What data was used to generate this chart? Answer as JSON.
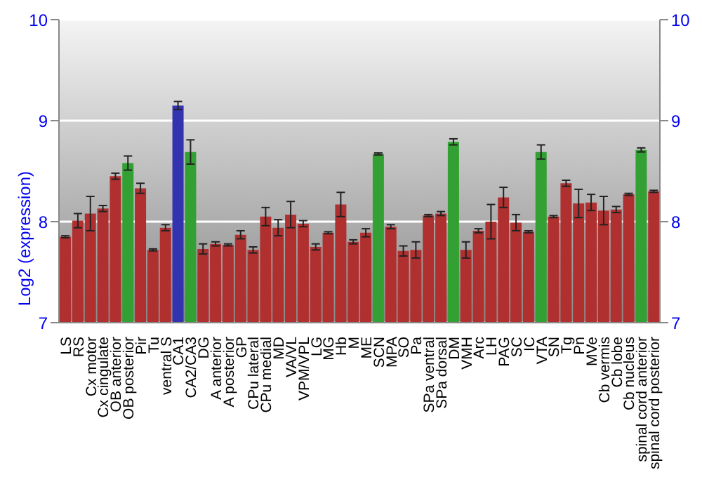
{
  "chart_data": {
    "type": "bar",
    "ylabel": "Log2 (expression)",
    "categories": [
      "LS",
      "RS",
      "Cx motor",
      "Cx cingulate",
      "OB anterior",
      "OB posterior",
      "Pir",
      "Tu",
      "ventral S",
      "CA1",
      "CA2/CA3",
      "DG",
      "A anterior",
      "A posterior",
      "GP",
      "CPu lateral",
      "CPu medial",
      "MD",
      "VA/VL",
      "VPM/VPL",
      "LG",
      "MG",
      "Hb",
      "M",
      "ME",
      "SCN",
      "MPA",
      "SO",
      "Pa",
      "SPa ventral",
      "SPa dorsal",
      "DM",
      "VMH",
      "Arc",
      "LH",
      "PAG",
      "SC",
      "IC",
      "VTA",
      "SN",
      "Tg",
      "Pn",
      "MVe",
      "Cb vermis",
      "Cb lobe",
      "Cb nucleus",
      "spinal cord anterior",
      "spinal cord posterior"
    ],
    "values": [
      7.85,
      8.01,
      8.08,
      8.13,
      8.45,
      8.58,
      8.33,
      7.72,
      7.94,
      9.15,
      8.69,
      7.73,
      7.78,
      7.77,
      7.87,
      7.72,
      8.05,
      7.94,
      8.07,
      7.98,
      7.75,
      7.89,
      8.17,
      7.8,
      7.89,
      8.67,
      7.95,
      7.71,
      7.72,
      8.06,
      8.08,
      8.79,
      7.72,
      7.91,
      8.0,
      8.24,
      7.99,
      7.9,
      8.69,
      8.05,
      8.38,
      8.18,
      8.19,
      8.11,
      8.12,
      8.27,
      8.71,
      8.3
    ],
    "errors": [
      0.01,
      0.07,
      0.17,
      0.03,
      0.03,
      0.07,
      0.05,
      0.01,
      0.03,
      0.04,
      0.12,
      0.05,
      0.02,
      0.01,
      0.04,
      0.03,
      0.09,
      0.08,
      0.13,
      0.03,
      0.03,
      0.01,
      0.12,
      0.02,
      0.04,
      0.01,
      0.02,
      0.05,
      0.08,
      0.01,
      0.02,
      0.03,
      0.08,
      0.02,
      0.17,
      0.1,
      0.08,
      0.01,
      0.07,
      0.01,
      0.03,
      0.14,
      0.08,
      0.14,
      0.03,
      0.01,
      0.02,
      0.01
    ],
    "colors": [
      "#b03030",
      "#b03030",
      "#b03030",
      "#b03030",
      "#b03030",
      "#33a033",
      "#b03030",
      "#b03030",
      "#b03030",
      "#3333b0",
      "#33a033",
      "#b03030",
      "#b03030",
      "#b03030",
      "#b03030",
      "#b03030",
      "#b03030",
      "#b03030",
      "#b03030",
      "#b03030",
      "#b03030",
      "#b03030",
      "#b03030",
      "#b03030",
      "#b03030",
      "#33a033",
      "#b03030",
      "#b03030",
      "#b03030",
      "#b03030",
      "#b03030",
      "#33a033",
      "#b03030",
      "#b03030",
      "#b03030",
      "#b03030",
      "#b03030",
      "#b03030",
      "#33a033",
      "#b03030",
      "#b03030",
      "#b03030",
      "#b03030",
      "#b03030",
      "#b03030",
      "#b03030",
      "#33a033",
      "#b03030"
    ],
    "ylim": [
      7,
      10
    ],
    "yticks": [
      7,
      8,
      9,
      10
    ],
    "y2lim": [
      7,
      10
    ],
    "y2ticks": [
      7,
      8,
      9,
      10
    ],
    "grid": "y"
  }
}
